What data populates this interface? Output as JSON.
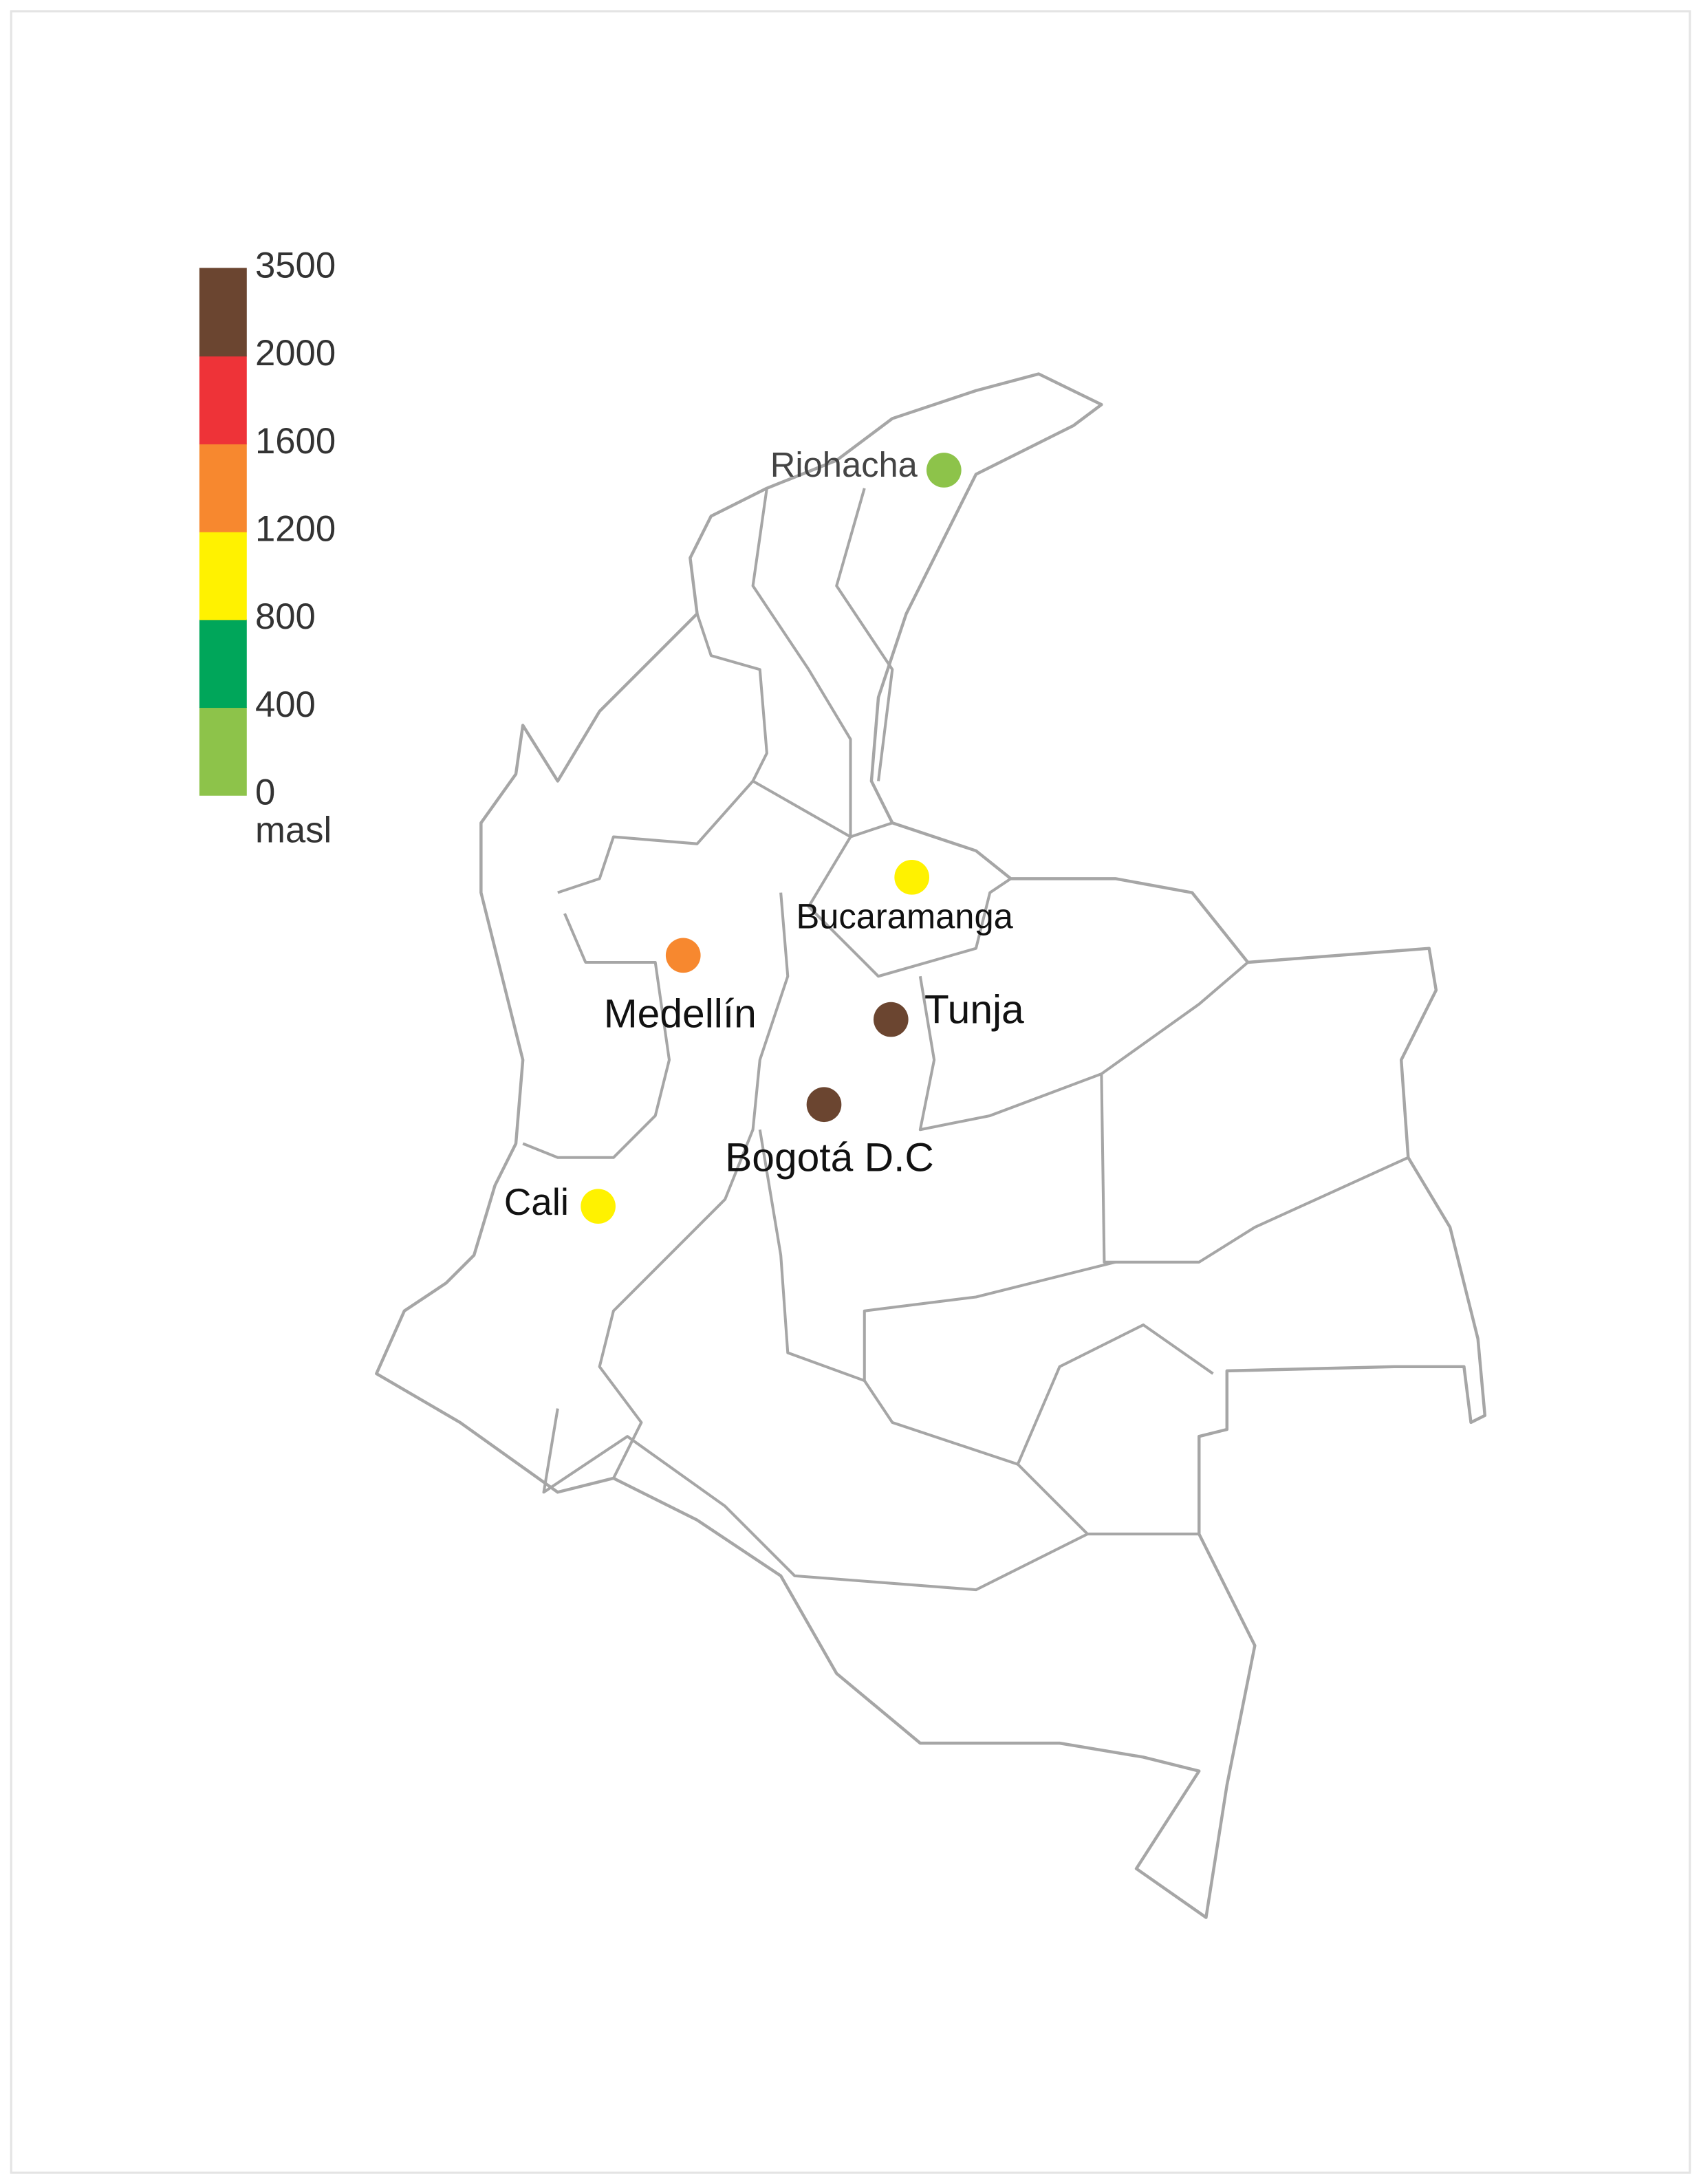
{
  "legend": {
    "ticks": [
      0,
      400,
      800,
      1200,
      1600,
      2000,
      3500
    ],
    "colors": [
      "#8dc34a",
      "#00a65a",
      "#fff200",
      "#f7882f",
      "#ee3338",
      "#6b4530"
    ],
    "unit": "masl"
  },
  "cities": [
    {
      "name": "Riohacha",
      "color": "#8dc34a"
    },
    {
      "name": "Bucaramanga",
      "color": "#fff200"
    },
    {
      "name": "Medellín",
      "color": "#f7882f"
    },
    {
      "name": "Tunja",
      "color": "#6b4530"
    },
    {
      "name": "Bogotá D.C",
      "color": "#6b4530"
    },
    {
      "name": "Cali",
      "color": "#fff200"
    }
  ]
}
